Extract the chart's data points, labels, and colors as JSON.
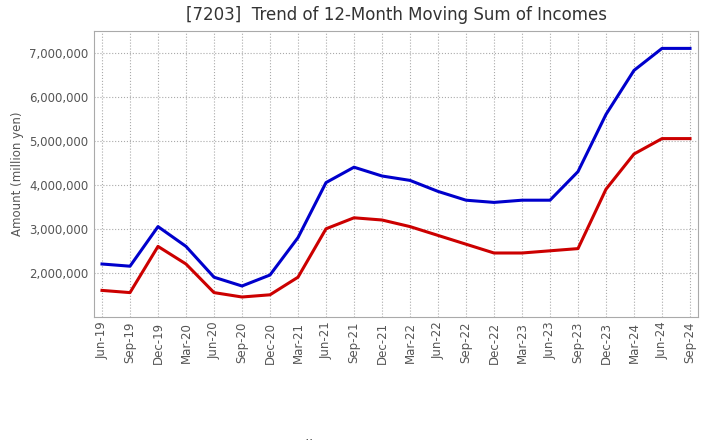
{
  "title": "[7203]  Trend of 12-Month Moving Sum of Incomes",
  "ylabel": "Amount (million yen)",
  "x_labels": [
    "Jun-19",
    "Sep-19",
    "Dec-19",
    "Mar-20",
    "Jun-20",
    "Sep-20",
    "Dec-20",
    "Mar-21",
    "Jun-21",
    "Sep-21",
    "Dec-21",
    "Mar-22",
    "Jun-22",
    "Sep-22",
    "Dec-22",
    "Mar-23",
    "Jun-23",
    "Sep-23",
    "Dec-23",
    "Mar-24",
    "Jun-24",
    "Sep-24"
  ],
  "ordinary_income": [
    2200000,
    2150000,
    3050000,
    2600000,
    1900000,
    1700000,
    1950000,
    2800000,
    4050000,
    4400000,
    4200000,
    4100000,
    3850000,
    3650000,
    3600000,
    3650000,
    3650000,
    4300000,
    5600000,
    6600000,
    7100000,
    7100000
  ],
  "net_income": [
    1600000,
    1550000,
    2600000,
    2200000,
    1550000,
    1450000,
    1500000,
    1900000,
    3000000,
    3250000,
    3200000,
    3050000,
    2850000,
    2650000,
    2450000,
    2450000,
    2500000,
    2550000,
    3900000,
    4700000,
    5050000,
    5050000
  ],
  "ordinary_income_color": "#0000cc",
  "net_income_color": "#cc0000",
  "background_color": "#ffffff",
  "grid_color": "#aaaaaa",
  "ylim_min": 1000000,
  "ylim_max": 7500000,
  "yticks": [
    2000000,
    3000000,
    4000000,
    5000000,
    6000000,
    7000000
  ],
  "title_fontsize": 12,
  "axis_fontsize": 8.5,
  "legend_fontsize": 10
}
